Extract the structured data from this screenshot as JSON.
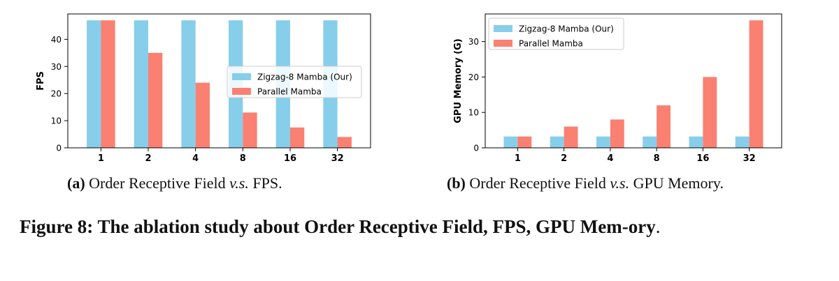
{
  "chart_data": [
    {
      "type": "bar",
      "categories": [
        "1",
        "2",
        "4",
        "8",
        "16",
        "32"
      ],
      "series": [
        {
          "name": "Zigzag-8 Mamba (Our)",
          "color": "#87CEEB",
          "values": [
            47,
            47,
            47,
            47,
            47,
            47
          ]
        },
        {
          "name": "Parallel Mamba",
          "color": "#FA8072",
          "values": [
            47,
            35,
            24,
            13,
            7.5,
            4
          ]
        }
      ],
      "title": "",
      "xlabel": "",
      "ylabel": "FPS",
      "ylim": [
        0,
        49.35
      ],
      "yticks": [
        "0",
        "10",
        "20",
        "30",
        "40"
      ],
      "legend_position": "center-right",
      "grid": false
    },
    {
      "type": "bar",
      "categories": [
        "1",
        "2",
        "4",
        "8",
        "16",
        "32"
      ],
      "series": [
        {
          "name": "Zigzag-8 Mamba (Our)",
          "color": "#87CEEB",
          "values": [
            3.2,
            3.2,
            3.2,
            3.2,
            3.2,
            3.2
          ]
        },
        {
          "name": "Parallel Mamba",
          "color": "#FA8072",
          "values": [
            3.2,
            6,
            8,
            12,
            20,
            36
          ]
        }
      ],
      "title": "",
      "xlabel": "",
      "ylabel": "GPU Memory (G)",
      "ylim": [
        0,
        37.8
      ],
      "yticks": [
        "0",
        "10",
        "20",
        "30"
      ],
      "legend_position": "top-left",
      "grid": false
    }
  ],
  "captions": {
    "a": {
      "label": "(a)",
      "text_before": "Order Receptive Field",
      "vs": "v.s.",
      "text_after": "FPS."
    },
    "b": {
      "label": "(b)",
      "text_before": "Order Receptive Field",
      "vs": "v.s.",
      "text_after": "GPU Memory."
    }
  },
  "figure_caption": {
    "label": "Figure 8:",
    "text": "The ablation study about Order Receptive Field, FPS, GPU Mem-ory",
    "tail": "."
  }
}
